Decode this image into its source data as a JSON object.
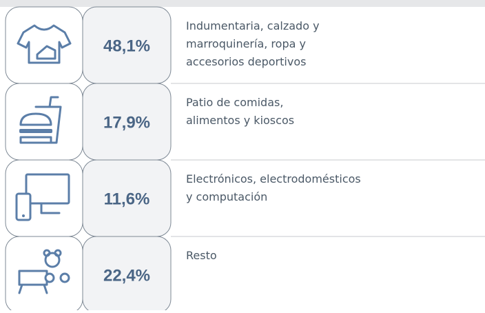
{
  "rows": [
    {
      "percent": "48,1%",
      "lines": [
        "Indumentaria, calzado y",
        "marroquinería, ropa y",
        "accesorios deportivos"
      ]
    },
    {
      "percent": "17,9%",
      "lines": [
        "Patio de comidas,",
        "alimentos y kioscos"
      ]
    },
    {
      "percent": "11,6%",
      "lines": [
        "Electrónicos, electrodomésticos",
        "y computación"
      ]
    },
    {
      "percent": "22,4%",
      "lines": [
        "Resto"
      ]
    }
  ]
}
